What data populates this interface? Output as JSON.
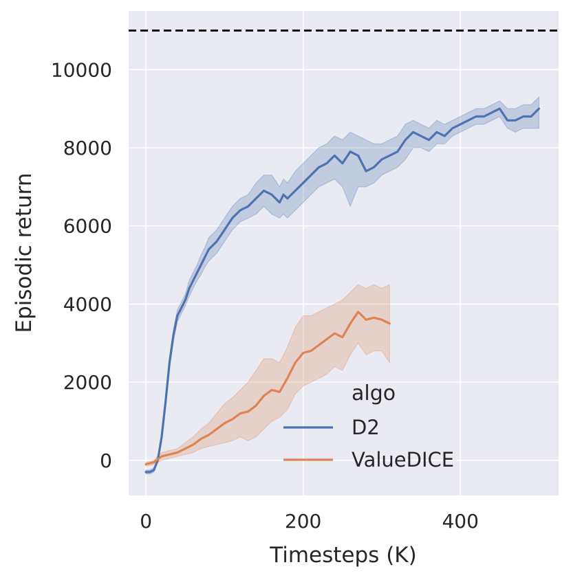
{
  "chart_data": {
    "type": "line",
    "xlabel": "Timesteps (K)",
    "ylabel": "Episodic return",
    "xlim": [
      -22,
      525
    ],
    "ylim": [
      -900,
      11500
    ],
    "xticks": [
      0,
      200,
      400
    ],
    "yticks": [
      0,
      2000,
      4000,
      6000,
      8000,
      10000
    ],
    "grid": true,
    "background": "#eaeaf2",
    "reference_line": {
      "y": 11000,
      "style": "dashed",
      "color": "#000000"
    },
    "legend": {
      "title": "algo",
      "placement": "lower-center",
      "entries": [
        "D2",
        "ValueDICE"
      ]
    },
    "series": [
      {
        "name": "D2",
        "color": "#4c72b0",
        "x": [
          0,
          5,
          10,
          15,
          20,
          25,
          30,
          35,
          40,
          45,
          50,
          55,
          60,
          65,
          70,
          75,
          80,
          90,
          100,
          110,
          120,
          130,
          140,
          150,
          160,
          170,
          175,
          180,
          190,
          200,
          210,
          220,
          230,
          240,
          250,
          260,
          270,
          280,
          290,
          300,
          310,
          320,
          330,
          340,
          350,
          360,
          370,
          380,
          390,
          400,
          410,
          420,
          430,
          440,
          450,
          460,
          470,
          480,
          490,
          500
        ],
        "y": [
          -300,
          -300,
          -250,
          0,
          600,
          1500,
          2500,
          3200,
          3700,
          3900,
          4100,
          4400,
          4600,
          4800,
          5000,
          5200,
          5400,
          5600,
          5900,
          6200,
          6400,
          6500,
          6700,
          6900,
          6800,
          6600,
          6800,
          6700,
          6900,
          7100,
          7300,
          7500,
          7600,
          7800,
          7600,
          7900,
          7800,
          7400,
          7500,
          7700,
          7800,
          7900,
          8200,
          8400,
          8300,
          8200,
          8400,
          8300,
          8500,
          8600,
          8700,
          8800,
          8800,
          8900,
          9000,
          8700,
          8700,
          8800,
          8800,
          9000
        ],
        "lower": [
          -350,
          -350,
          -300,
          -50,
          500,
          1350,
          2350,
          3050,
          3550,
          3750,
          3950,
          4200,
          4400,
          4600,
          4750,
          4950,
          5100,
          5300,
          5600,
          5900,
          6100,
          6200,
          6300,
          6500,
          6300,
          6200,
          6300,
          6200,
          6400,
          6600,
          6800,
          7000,
          7100,
          7200,
          7000,
          6500,
          7000,
          7000,
          7100,
          7300,
          7400,
          7500,
          7700,
          8000,
          8000,
          7900,
          8100,
          8100,
          8300,
          8400,
          8500,
          8600,
          8600,
          8700,
          8800,
          8500,
          8400,
          8500,
          8500,
          8500
        ],
        "upper": [
          -250,
          -250,
          -200,
          50,
          700,
          1650,
          2650,
          3350,
          3850,
          4050,
          4250,
          4600,
          4800,
          5000,
          5250,
          5450,
          5700,
          5900,
          6200,
          6500,
          6700,
          6800,
          7100,
          7300,
          7300,
          7000,
          7200,
          7100,
          7400,
          7600,
          7800,
          8000,
          8100,
          8300,
          8200,
          8400,
          8300,
          8200,
          8100,
          8100,
          8200,
          8300,
          8600,
          8700,
          8600,
          8500,
          8700,
          8600,
          8700,
          8800,
          8900,
          9000,
          9000,
          9100,
          9200,
          9000,
          9000,
          9100,
          9100,
          9300
        ]
      },
      {
        "name": "ValueDICE",
        "color": "#dd8452",
        "x": [
          0,
          10,
          20,
          30,
          40,
          50,
          60,
          70,
          80,
          90,
          100,
          110,
          120,
          130,
          140,
          150,
          160,
          170,
          180,
          190,
          200,
          210,
          220,
          230,
          240,
          250,
          260,
          270,
          280,
          290,
          300,
          310
        ],
        "y": [
          -100,
          -50,
          100,
          150,
          200,
          300,
          400,
          550,
          650,
          800,
          950,
          1050,
          1200,
          1250,
          1400,
          1650,
          1800,
          1750,
          2100,
          2500,
          2750,
          2800,
          2950,
          3100,
          3250,
          3150,
          3500,
          3800,
          3600,
          3650,
          3600,
          3500
        ],
        "lower": [
          -150,
          -100,
          0,
          50,
          100,
          150,
          200,
          300,
          350,
          400,
          450,
          500,
          600,
          500,
          600,
          800,
          1000,
          1100,
          1300,
          1700,
          1900,
          2000,
          2100,
          2200,
          2400,
          2300,
          2700,
          3000,
          2700,
          2800,
          2800,
          2500
        ],
        "upper": [
          -50,
          0,
          200,
          250,
          300,
          450,
          600,
          800,
          950,
          1200,
          1450,
          1600,
          1800,
          2000,
          2300,
          2600,
          2600,
          2500,
          2900,
          3400,
          3700,
          3700,
          3800,
          3900,
          4000,
          4100,
          4300,
          4500,
          4400,
          4500,
          4400,
          4500
        ]
      }
    ]
  }
}
